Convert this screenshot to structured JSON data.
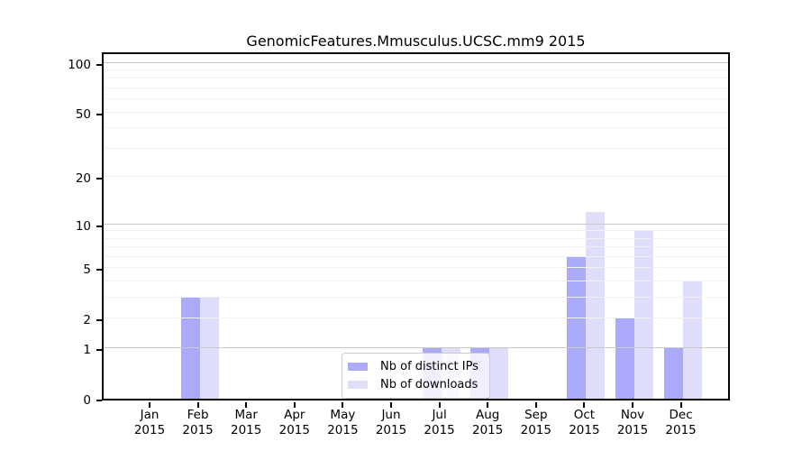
{
  "chart_data": {
    "type": "bar",
    "title": "GenomicFeatures.Mmusculus.UCSC.mm9 2015",
    "categories": [
      "Jan 2015",
      "Feb 2015",
      "Mar 2015",
      "Apr 2015",
      "May 2015",
      "Jun 2015",
      "Jul 2015",
      "Aug 2015",
      "Sep 2015",
      "Oct 2015",
      "Nov 2015",
      "Dec 2015"
    ],
    "x_tick_top_lines": [
      "Jan",
      "Feb",
      "Mar",
      "Apr",
      "May",
      "Jun",
      "Jul",
      "Aug",
      "Sep",
      "Oct",
      "Nov",
      "Dec"
    ],
    "x_tick_bottom_line": "2015",
    "series": [
      {
        "name": "Nb of distinct IPs",
        "color": "#aaaaf8",
        "values": [
          0,
          3,
          0,
          0,
          0,
          0,
          1,
          1,
          0,
          6,
          2,
          1
        ]
      },
      {
        "name": "Nb of downloads",
        "color": "#dedefa",
        "values": [
          0,
          3,
          0,
          0,
          0,
          0,
          1,
          1,
          0,
          12,
          9,
          4
        ]
      }
    ],
    "y_scale": "log1p",
    "y_axis": {
      "tick_values": [
        0,
        1,
        2,
        5,
        10,
        20,
        50,
        100
      ],
      "tick_labels": [
        "0",
        "1",
        "2",
        "5",
        "10",
        "20",
        "50",
        "100"
      ],
      "major_gridlines": [
        1,
        10,
        100
      ],
      "minor_gridlines": [
        2,
        3,
        4,
        5,
        6,
        7,
        8,
        9,
        20,
        30,
        40,
        50,
        60,
        70,
        80,
        90
      ]
    },
    "legend": {
      "position": "lower center"
    },
    "colors": {
      "grid_major": "#c9c9c9",
      "grid_minor": "#f1f1f1",
      "frame": "#000000",
      "background": "#ffffff"
    }
  }
}
